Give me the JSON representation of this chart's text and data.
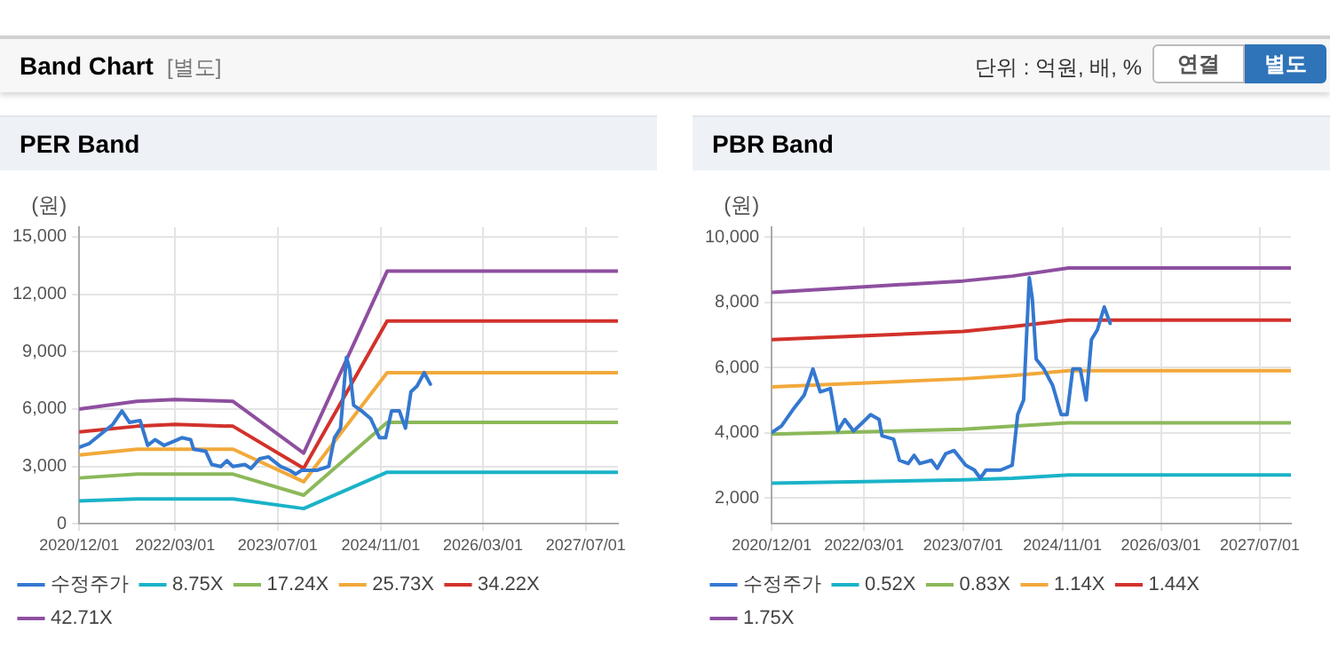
{
  "chart_data": [
    {
      "type": "line",
      "title": "PER Band",
      "ylabel": "(원)",
      "annotations": [
        "Band Chart",
        "[별도]",
        "단위 : 억원, 배, %",
        "연결",
        "별도"
      ],
      "xlim": [
        "2020-12-01",
        "2027-12-01"
      ],
      "xticks": [
        {
          "value": "2020-12-01",
          "label": "2020/12/01"
        },
        {
          "value": "2022-03-01",
          "label": "2022/03/01"
        },
        {
          "value": "2023-07-01",
          "label": "2023/07/01"
        },
        {
          "value": "2024-11-01",
          "label": "2024/11/01"
        },
        {
          "value": "2026-03-01",
          "label": "2026/03/01"
        },
        {
          "value": "2027-07-01",
          "label": "2027/07/01"
        }
      ],
      "ylim": [
        0,
        15500
      ],
      "yticks": [
        {
          "value": 0,
          "label": "0"
        },
        {
          "value": 3000,
          "label": "3,000"
        },
        {
          "value": 6000,
          "label": "6,000"
        },
        {
          "value": 9000,
          "label": "9,000"
        },
        {
          "value": 12000,
          "label": "12,000"
        },
        {
          "value": 15000,
          "label": "15,000"
        }
      ],
      "grid": true,
      "legend": "bottom",
      "marker": "none",
      "line_style": "solid",
      "series": [
        {
          "name": "수정주가",
          "color": "#3478d0",
          "x": [
            "2020-12-01",
            "2021-01-18",
            "2021-03-15",
            "2021-05-10",
            "2021-06-22",
            "2021-07-28",
            "2021-09-16",
            "2021-10-22",
            "2021-11-26",
            "2022-01-08",
            "2022-02-20",
            "2022-04-02",
            "2022-05-14",
            "2022-05-28",
            "2022-07-24",
            "2022-08-22",
            "2022-10-04",
            "2022-11-02",
            "2022-11-30",
            "2023-01-26",
            "2023-02-24",
            "2023-04-06",
            "2023-05-18",
            "2023-07-14",
            "2023-08-26",
            "2023-09-24",
            "2023-10-22",
            "2024-01-02",
            "2024-02-28",
            "2024-03-26",
            "2024-04-24",
            "2024-05-22",
            "2024-06-06",
            "2024-06-25",
            "2024-08-02",
            "2024-09-14",
            "2024-10-26",
            "2024-11-24",
            "2024-12-22",
            "2025-01-28",
            "2025-02-26",
            "2025-03-24",
            "2025-04-22",
            "2025-05-26",
            "2025-06-24"
          ],
          "values": [
            4000,
            4200,
            4700,
            5200,
            5900,
            5300,
            5400,
            4100,
            4400,
            4100,
            4300,
            4500,
            4400,
            3900,
            3800,
            3100,
            3000,
            3300,
            3000,
            3100,
            2900,
            3400,
            3500,
            3000,
            2800,
            2600,
            2800,
            2800,
            3000,
            4500,
            5000,
            8700,
            8100,
            6200,
            5900,
            5500,
            4500,
            4500,
            5900,
            5900,
            5000,
            6900,
            7200,
            7900,
            7300
          ]
        },
        {
          "name": "8.75X",
          "color": "#1ab3c8",
          "x": [
            "2020-12-01",
            "2021-09-01",
            "2022-03-01",
            "2022-12-01",
            "2023-11-01",
            "2024-12-01",
            "2027-12-01"
          ],
          "values": [
            1200,
            1300,
            1300,
            1300,
            800,
            2700,
            2700
          ]
        },
        {
          "name": "17.24X",
          "color": "#8cb85a",
          "x": [
            "2020-12-01",
            "2021-09-01",
            "2022-03-01",
            "2022-12-01",
            "2023-11-01",
            "2024-12-01",
            "2027-12-01"
          ],
          "values": [
            2400,
            2600,
            2600,
            2600,
            1500,
            5300,
            5300
          ]
        },
        {
          "name": "25.73X",
          "color": "#f2a93b",
          "x": [
            "2020-12-01",
            "2021-09-01",
            "2022-03-01",
            "2022-12-01",
            "2023-11-01",
            "2024-12-01",
            "2027-12-01"
          ],
          "values": [
            3600,
            3900,
            3900,
            3900,
            2200,
            7900,
            7900
          ]
        },
        {
          "name": "34.22X",
          "color": "#d2322b",
          "x": [
            "2020-12-01",
            "2021-09-01",
            "2022-03-01",
            "2022-12-01",
            "2023-11-01",
            "2024-12-01",
            "2027-12-01"
          ],
          "values": [
            4800,
            5100,
            5200,
            5100,
            2900,
            10600,
            10600
          ]
        },
        {
          "name": "42.71X",
          "color": "#8e4f9f",
          "x": [
            "2020-12-01",
            "2021-09-01",
            "2022-03-01",
            "2022-12-01",
            "2023-11-01",
            "2024-12-01",
            "2027-12-01"
          ],
          "values": [
            6000,
            6400,
            6500,
            6400,
            3700,
            13200,
            13200
          ]
        }
      ]
    },
    {
      "type": "line",
      "title": "PBR Band",
      "ylabel": "(원)",
      "xlim": [
        "2020-12-01",
        "2027-12-01"
      ],
      "xticks": [
        {
          "value": "2020-12-01",
          "label": "2020/12/01"
        },
        {
          "value": "2022-03-01",
          "label": "2022/03/01"
        },
        {
          "value": "2023-07-01",
          "label": "2023/07/01"
        },
        {
          "value": "2024-11-01",
          "label": "2024/11/01"
        },
        {
          "value": "2026-03-01",
          "label": "2026/03/01"
        },
        {
          "value": "2027-07-01",
          "label": "2027/07/01"
        }
      ],
      "ylim": [
        1200,
        10300
      ],
      "yticks": [
        {
          "value": 2000,
          "label": "2,000"
        },
        {
          "value": 4000,
          "label": "4,000"
        },
        {
          "value": 6000,
          "label": "6,000"
        },
        {
          "value": 8000,
          "label": "8,000"
        },
        {
          "value": 10000,
          "label": "10,000"
        }
      ],
      "grid": true,
      "legend": "bottom",
      "marker": "none",
      "line_style": "solid",
      "series": [
        {
          "name": "수정주가",
          "color": "#3478d0",
          "x": [
            "2020-12-01",
            "2021-01-18",
            "2021-03-15",
            "2021-05-10",
            "2021-06-22",
            "2021-07-28",
            "2021-09-16",
            "2021-10-22",
            "2021-11-26",
            "2022-01-08",
            "2022-02-20",
            "2022-04-02",
            "2022-05-14",
            "2022-05-28",
            "2022-07-24",
            "2022-08-22",
            "2022-10-04",
            "2022-11-02",
            "2022-11-30",
            "2023-01-26",
            "2023-02-24",
            "2023-04-06",
            "2023-05-18",
            "2023-07-14",
            "2023-08-26",
            "2023-09-24",
            "2023-10-22",
            "2024-01-02",
            "2024-02-28",
            "2024-03-26",
            "2024-04-24",
            "2024-05-22",
            "2024-06-06",
            "2024-06-25",
            "2024-08-02",
            "2024-09-14",
            "2024-10-26",
            "2024-11-24",
            "2024-12-22",
            "2025-01-28",
            "2025-02-26",
            "2025-03-24",
            "2025-04-22",
            "2025-05-26",
            "2025-06-24"
          ],
          "values": [
            4000,
            4200,
            4700,
            5150,
            5950,
            5250,
            5350,
            4050,
            4400,
            4050,
            4300,
            4550,
            4400,
            3900,
            3800,
            3150,
            3050,
            3300,
            3050,
            3150,
            2900,
            3350,
            3450,
            3000,
            2850,
            2600,
            2850,
            2850,
            3000,
            4550,
            5000,
            8750,
            8100,
            6250,
            5950,
            5450,
            4550,
            4550,
            5950,
            5950,
            5000,
            6850,
            7150,
            7850,
            7350
          ]
        },
        {
          "name": "0.52X",
          "color": "#1ab3c8",
          "x": [
            "2020-12-01",
            "2023-07-01",
            "2024-03-01",
            "2024-12-01",
            "2027-12-01"
          ],
          "values": [
            2450,
            2550,
            2600,
            2700,
            2700
          ]
        },
        {
          "name": "0.83X",
          "color": "#8cb85a",
          "x": [
            "2020-12-01",
            "2023-07-01",
            "2024-03-01",
            "2024-12-01",
            "2027-12-01"
          ],
          "values": [
            3950,
            4100,
            4200,
            4300,
            4300
          ]
        },
        {
          "name": "1.14X",
          "color": "#f2a93b",
          "x": [
            "2020-12-01",
            "2023-07-01",
            "2024-03-01",
            "2024-12-01",
            "2027-12-01"
          ],
          "values": [
            5400,
            5650,
            5750,
            5900,
            5900
          ]
        },
        {
          "name": "1.44X",
          "color": "#d2322b",
          "x": [
            "2020-12-01",
            "2023-07-01",
            "2024-03-01",
            "2024-12-01",
            "2027-12-01"
          ],
          "values": [
            6850,
            7100,
            7250,
            7450,
            7450
          ]
        },
        {
          "name": "1.75X",
          "color": "#8e4f9f",
          "x": [
            "2020-12-01",
            "2023-07-01",
            "2024-03-01",
            "2024-12-01",
            "2027-12-01"
          ],
          "values": [
            8300,
            8650,
            8800,
            9050,
            9050
          ]
        }
      ]
    }
  ]
}
